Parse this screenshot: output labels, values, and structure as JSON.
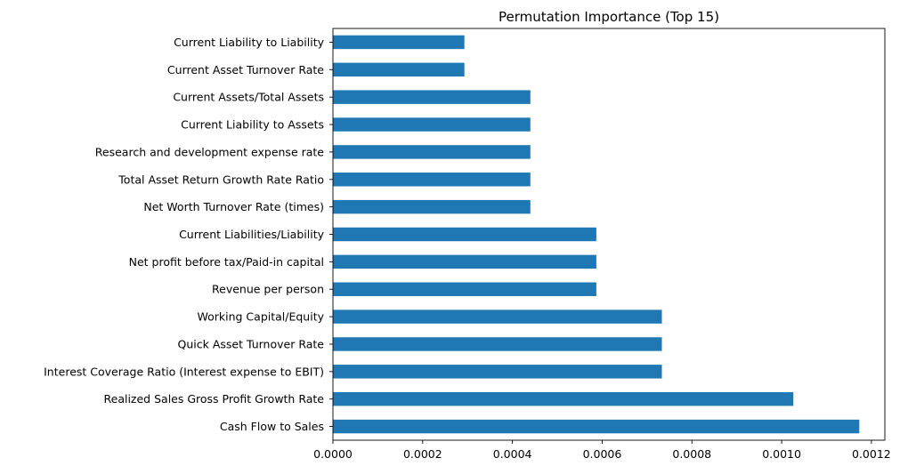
{
  "chart_data": {
    "type": "bar",
    "orientation": "horizontal",
    "title": "Permutation Importance (Top 15)",
    "xlabel": "",
    "ylabel": "",
    "xlim": [
      0,
      0.00123
    ],
    "grid": false,
    "legend": "none",
    "bar_color": "#1f77b4",
    "x_ticks": [
      0,
      0.0002,
      0.0004,
      0.0006,
      0.0008,
      0.001,
      0.0012
    ],
    "x_tick_labels": [
      "0.0000",
      "0.0002",
      "0.0004",
      "0.0006",
      "0.0008",
      "0.0010",
      "0.0012"
    ],
    "categories": [
      "Current Liability to Liability",
      "Current Asset Turnover Rate",
      "Current Assets/Total Assets",
      "Current Liability to Assets",
      "Research and development expense rate",
      "Total Asset Return Growth Rate Ratio",
      "Net Worth Turnover Rate (times)",
      "Current Liabilities/Liability",
      "Net profit before tax/Paid-in capital",
      "Revenue per person",
      "Working Capital/Equity",
      "Quick Asset Turnover Rate",
      "Interest Coverage Ratio (Interest expense to EBIT)",
      "Realized Sales Gross Profit Growth Rate",
      "Cash Flow to Sales"
    ],
    "values": [
      0.000293,
      0.000293,
      0.00044,
      0.00044,
      0.00044,
      0.00044,
      0.00044,
      0.000587,
      0.000587,
      0.000587,
      0.000733,
      0.000733,
      0.000733,
      0.001026,
      0.001173
    ]
  }
}
